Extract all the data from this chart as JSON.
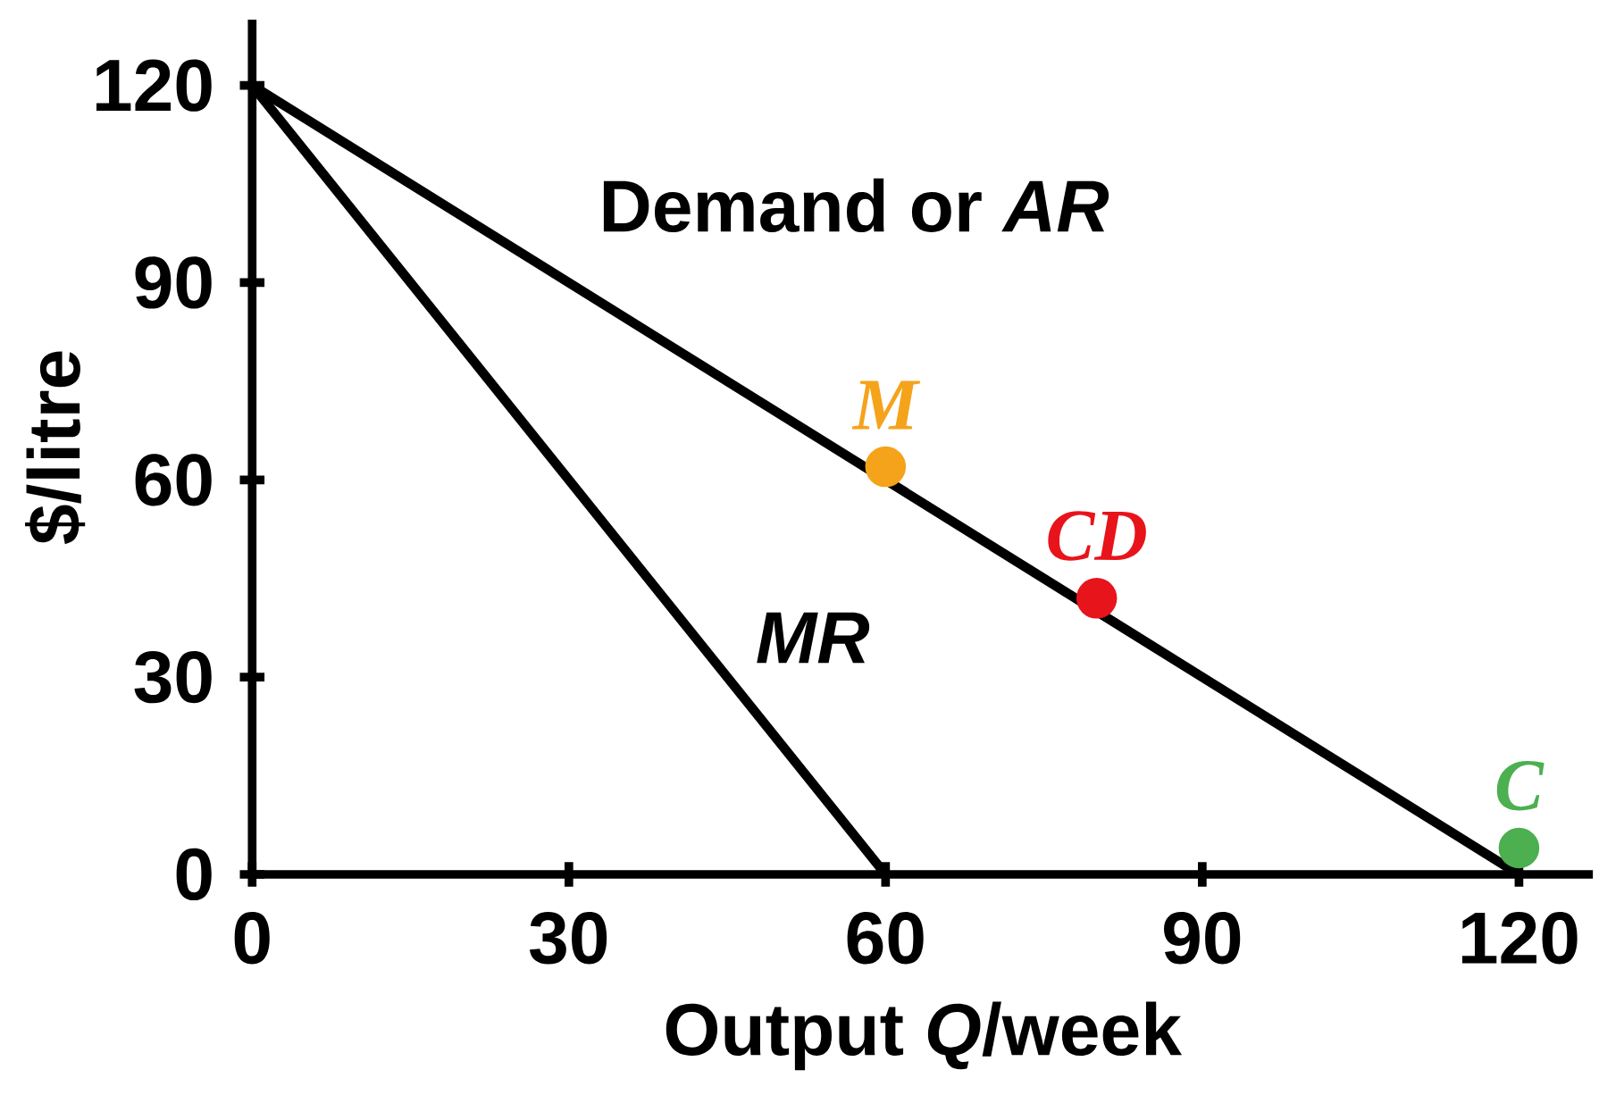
{
  "chart_data": {
    "type": "line",
    "xlabel": "Output *Q*/week",
    "ylabel": "$/litre",
    "xlim": [
      0,
      127
    ],
    "ylim": [
      0,
      130
    ],
    "xticks": [
      0,
      30,
      60,
      90,
      120
    ],
    "yticks": [
      0,
      30,
      60,
      90,
      120
    ],
    "series": [
      {
        "name": "Demand or *AR*",
        "color": "#000000",
        "marker": "none",
        "x": [
          0,
          120
        ],
        "values": [
          120,
          0
        ]
      },
      {
        "name": "*MR*",
        "color": "#000000",
        "marker": "none",
        "x": [
          0,
          60
        ],
        "values": [
          120,
          0
        ]
      },
      {
        "type": "scatter",
        "color": "#f5a31b",
        "marker": "circle",
        "x": [
          60
        ],
        "values": [
          62
        ]
      },
      {
        "type": "scatter",
        "color": "#e8141b",
        "marker": "circle",
        "x": [
          80
        ],
        "values": [
          42
        ]
      },
      {
        "type": "scatter",
        "color": "#4caf50",
        "marker": "circle",
        "x": [
          120
        ],
        "values": [
          4
        ]
      }
    ],
    "annotations": [
      {
        "text": "M",
        "x": 60,
        "y": 62
      },
      {
        "text": "CD",
        "x": 80,
        "y": 42
      },
      {
        "text": "C",
        "x": 120,
        "y": 4
      }
    ]
  }
}
